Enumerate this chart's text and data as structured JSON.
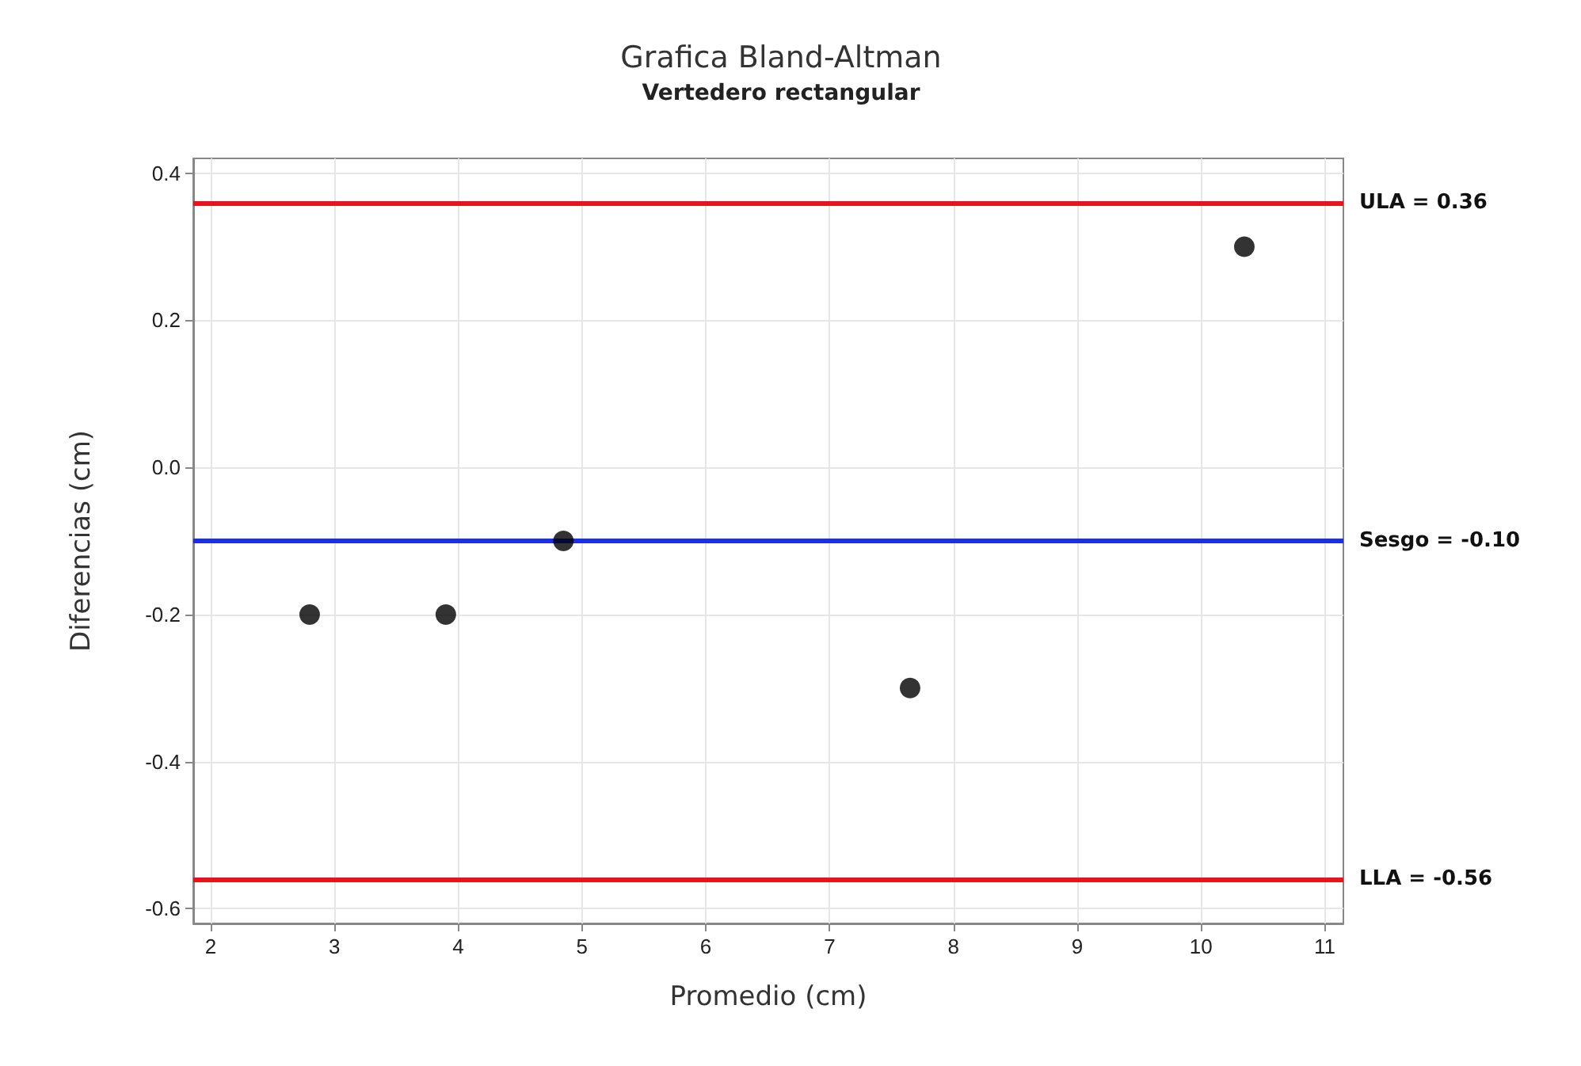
{
  "chart_data": {
    "type": "scatter",
    "title": "Grafica Bland-Altman",
    "subtitle": "Vertedero rectangular",
    "xlabel": "Promedio (cm)",
    "ylabel": "Diferencias (cm)",
    "x": [
      2.8,
      3.9,
      4.85,
      7.65,
      10.35
    ],
    "series": [
      {
        "color": "#000000",
        "values": [
          -0.2,
          -0.2,
          -0.1,
          -0.3,
          0.3
        ]
      }
    ],
    "xlim": [
      1.86,
      11.15
    ],
    "xticks": [
      2,
      3,
      4,
      5,
      6,
      7,
      8,
      9,
      10,
      11
    ],
    "ylim": [
      -0.62,
      0.42
    ],
    "yticks": [
      -0.6,
      -0.4,
      -0.2,
      {
        "value": 0,
        "label": "0.0"
      },
      0.2,
      0.4
    ],
    "ref_lines": [
      {
        "axis": "y",
        "value": 0.36,
        "label": "ULA = 0.36",
        "color": "#e8141b"
      },
      {
        "axis": "y",
        "value": -0.1,
        "label": "Sesgo = -0.10",
        "color": "#1f2fe0"
      },
      {
        "axis": "y",
        "value": -0.56,
        "label": "LLA = -0.56",
        "color": "#e8141b"
      }
    ],
    "grid": true,
    "marker": "circle"
  }
}
